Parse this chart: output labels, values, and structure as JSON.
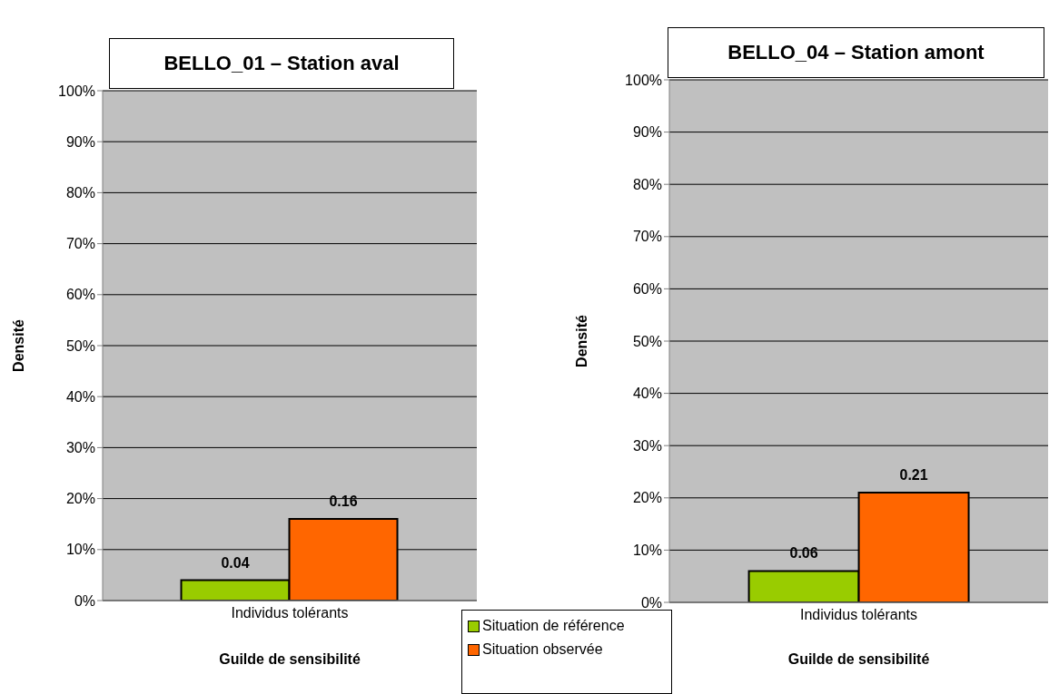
{
  "chart_data": [
    {
      "type": "bar",
      "title": "BELLO_01 – Station aval",
      "xlabel": "Guilde de sensibilité",
      "ylabel": "Densité",
      "categories": [
        "Individus tolérants"
      ],
      "series": [
        {
          "name": "Situation de référence",
          "color": "#99cc00",
          "values": [
            0.04
          ]
        },
        {
          "name": "Situation observée",
          "color": "#ff6600",
          "values": [
            0.16
          ]
        }
      ],
      "ylim": [
        0,
        1
      ],
      "yticks": [
        {
          "value": 0,
          "label": "0%"
        },
        {
          "value": 0.1,
          "label": "10%"
        },
        {
          "value": 0.2,
          "label": "20%"
        },
        {
          "value": 0.3,
          "label": "30%"
        },
        {
          "value": 0.4,
          "label": "40%"
        },
        {
          "value": 0.5,
          "label": "50%"
        },
        {
          "value": 0.6,
          "label": "60%"
        },
        {
          "value": 0.7,
          "label": "70%"
        },
        {
          "value": 0.8,
          "label": "80%"
        },
        {
          "value": 0.9,
          "label": "90%"
        },
        {
          "value": 1,
          "label": "100%"
        }
      ],
      "grid": "y",
      "data_labels": true,
      "legend": "bottom right"
    },
    {
      "type": "bar",
      "title": "BELLO_04 – Station amont",
      "xlabel": "Guilde de sensibilité",
      "ylabel": "Densité",
      "categories": [
        "Individus tolérants"
      ],
      "series": [
        {
          "color": "#99cc00",
          "values": [
            0.06
          ]
        },
        {
          "color": "#ff6600",
          "values": [
            0.21
          ]
        }
      ],
      "ylim": [
        0,
        1
      ],
      "yticks": [
        {
          "value": 0,
          "label": "0%"
        },
        {
          "value": 0.1,
          "label": "10%"
        },
        {
          "value": 0.2,
          "label": "20%"
        },
        {
          "value": 0.3,
          "label": "30%"
        },
        {
          "value": 0.4,
          "label": "40%"
        },
        {
          "value": 0.5,
          "label": "50%"
        },
        {
          "value": 0.6,
          "label": "60%"
        },
        {
          "value": 0.7,
          "label": "70%"
        },
        {
          "value": 0.8,
          "label": "80%"
        },
        {
          "value": 0.9,
          "label": "90%"
        },
        {
          "value": 1,
          "label": "100%"
        }
      ],
      "grid": "y",
      "data_labels": true
    }
  ]
}
